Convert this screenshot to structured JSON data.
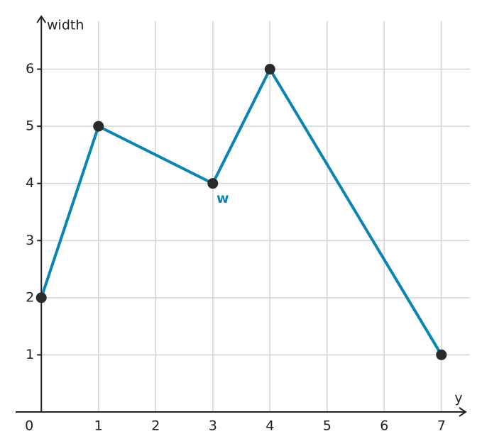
{
  "chart_data": {
    "type": "line",
    "x_label": "y",
    "y_label": "width",
    "x": [
      0,
      1,
      3,
      4,
      7
    ],
    "series": [
      {
        "name": "w",
        "color": "#0a84b4",
        "values": [
          2,
          5,
          4,
          6,
          1
        ]
      }
    ],
    "marker_color": "#2a2a2a",
    "xlim": [
      -0.45,
      7.4
    ],
    "ylim": [
      0,
      6.9
    ],
    "xticks": [
      0,
      1,
      2,
      3,
      4,
      5,
      6,
      7
    ],
    "yticks": [
      1,
      2,
      3,
      4,
      5,
      6
    ],
    "grid": true
  }
}
